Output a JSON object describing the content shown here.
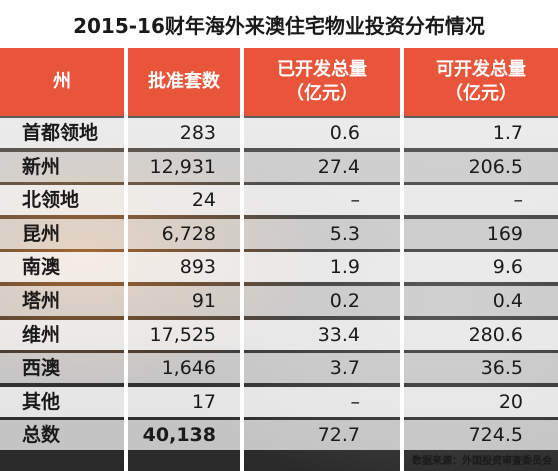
{
  "chart_data": {
    "type": "table",
    "title": "2015-16财年海外来澳住宅物业投资分布情况",
    "columns": [
      "州",
      "批准套数",
      "已开发总量\n（亿元）",
      "可开发总量\n（亿元）"
    ],
    "rows": [
      {
        "state": "首都领地",
        "approved": "283",
        "developed": "0.6",
        "developable": "1.7"
      },
      {
        "state": "新州",
        "approved": "12,931",
        "developed": "27.4",
        "developable": "206.5"
      },
      {
        "state": "北领地",
        "approved": "24",
        "developed": "–",
        "developable": "–"
      },
      {
        "state": "昆州",
        "approved": "6,728",
        "developed": "5.3",
        "developable": "169"
      },
      {
        "state": "南澳",
        "approved": "893",
        "developed": "1.9",
        "developable": "9.6"
      },
      {
        "state": "塔州",
        "approved": "91",
        "developed": "0.2",
        "developable": "0.4"
      },
      {
        "state": "维州",
        "approved": "17,525",
        "developed": "33.4",
        "developable": "280.6"
      },
      {
        "state": "西澳",
        "approved": "1,646",
        "developed": "3.7",
        "developable": "36.5"
      },
      {
        "state": "其他",
        "approved": "17",
        "developed": "–",
        "developable": "20"
      },
      {
        "state": "总数",
        "approved": "40,138",
        "developed": "72.7",
        "developable": "724.5"
      }
    ],
    "source": "数据来源：外国投资审查委员会"
  },
  "colors": {
    "header": "#e8553a",
    "title_bg": "#ffffff"
  }
}
